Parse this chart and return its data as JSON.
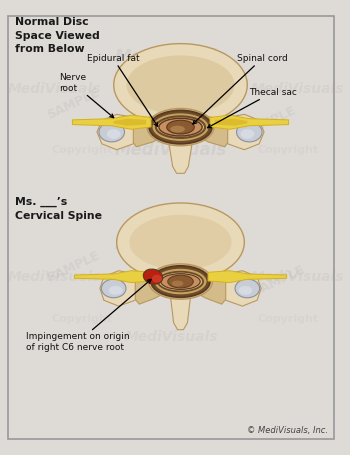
{
  "bg_color": "#dedad6",
  "border_color": "#b0a898",
  "title_top_left": "Normal Disc\nSpace Viewed\nfrom Below",
  "title_bottom_left": "Ms. ___’s\nCervical Spine",
  "label_nerve_root": "Nerve\nroot",
  "label_thecal_sac": "Thecal sac",
  "label_epidural_fat": "Epidural fat",
  "label_spinal_cord": "Spinal cord",
  "label_impingement": "Impingement on origin\nof right C6 nerve root",
  "copyright_text": "© MediVisuals, Inc.",
  "bone_light": "#e8d9b8",
  "bone_mid": "#d4bc8a",
  "bone_dark": "#b89860",
  "bone_shadow": "#a08040",
  "disc_outer": "#6b4c2a",
  "disc_mid": "#c8a060",
  "disc_inner": "#d4b878",
  "cord_dark": "#5a3820",
  "cord_mid": "#8b5a30",
  "cord_light": "#c89060",
  "nerve_yellow": "#d4b020",
  "nerve_light": "#e8d040",
  "facet_light": "#c8ccd4",
  "facet_mid": "#a8b0bc",
  "facet_dark": "#8890a0",
  "red_impinge": "#b82010",
  "red_light": "#d84030",
  "text_color": "#1a1a1a",
  "anno_color": "#111111",
  "copyright_small": "#444444",
  "watermark_alpha": 0.1
}
